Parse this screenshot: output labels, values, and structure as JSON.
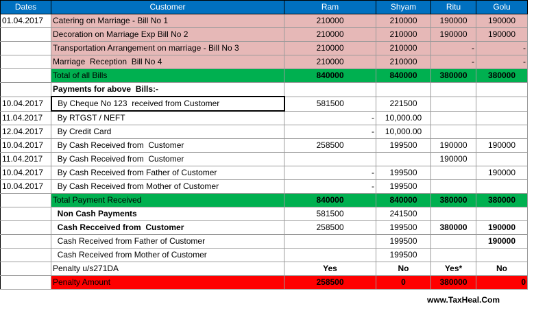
{
  "headers": [
    "Dates",
    "Customer",
    "Ram",
    "Shyam",
    "Ritu",
    "Golu"
  ],
  "rows": [
    {
      "style": "pink",
      "cells": [
        "01.04.2017",
        "Catering on Marriage - Bill No 1",
        "210000",
        "210000",
        "190000",
        "190000"
      ]
    },
    {
      "style": "pink",
      "cells": [
        "",
        "Decoration on Marriage Exp Bill No 2",
        "210000",
        "210000",
        "190000",
        "190000"
      ]
    },
    {
      "style": "pink",
      "cells": [
        "",
        "Transportation Arrangement on marriage - Bill No 3",
        "210000",
        "210000",
        "-",
        "-"
      ]
    },
    {
      "style": "pink",
      "cells": [
        "",
        "Marriage  Reception  Bill No 4",
        "210000",
        "210000",
        "-",
        "-"
      ]
    },
    {
      "style": "green",
      "cells": [
        "",
        "Total of all Bills",
        "840000",
        "840000",
        "380000",
        "380000"
      ]
    },
    {
      "style": "plain",
      "cells": [
        "",
        "Payments for above  Bills:-",
        "",
        "",
        "",
        ""
      ]
    },
    {
      "style": "plain",
      "cells": [
        "10.04.2017",
        "  By Cheque No 123  received from Customer",
        "581500",
        "221500",
        "",
        ""
      ]
    },
    {
      "style": "plain",
      "cells": [
        "11.04.2017",
        "  By RTGST / NEFT",
        "-",
        "10,000.00",
        "",
        ""
      ]
    },
    {
      "style": "plain",
      "cells": [
        "12.04.2017",
        "  By Credit Card",
        "-",
        "10,000.00",
        "",
        ""
      ]
    },
    {
      "style": "plain",
      "cells": [
        "10.04.2017",
        "  By Cash Received from  Customer",
        "258500",
        "199500",
        "190000",
        "190000"
      ]
    },
    {
      "style": "plain",
      "cells": [
        "11.04.2017",
        "  By Cash Received from  Customer",
        "",
        "",
        "190000",
        ""
      ]
    },
    {
      "style": "plain",
      "cells": [
        "10.04.2017",
        "  By Cash Received from Father of Customer",
        "-",
        "199500",
        "",
        "190000"
      ]
    },
    {
      "style": "plain",
      "cells": [
        "10.04.2017",
        "  By Cash Received from Mother of Customer",
        "-",
        "199500",
        "",
        ""
      ]
    },
    {
      "style": "green",
      "cells": [
        "",
        "Total Payment Received",
        "840000",
        "840000",
        "380000",
        "380000"
      ]
    },
    {
      "style": "plain",
      "cells": [
        "",
        "  Non Cash Payments",
        "581500",
        "241500",
        "",
        ""
      ]
    },
    {
      "style": "plain",
      "cells": [
        "",
        "  Cash Recceived from  Customer",
        "258500",
        "199500",
        "380000",
        "190000"
      ]
    },
    {
      "style": "plain",
      "cells": [
        "",
        "  Cash Received from Father of Customer",
        "",
        "199500",
        "",
        "190000"
      ]
    },
    {
      "style": "plain",
      "cells": [
        "",
        "  Cash Received from Mother of Customer",
        "",
        "199500",
        "",
        ""
      ]
    },
    {
      "style": "plain",
      "cells": [
        "",
        "Penalty u/s271DA",
        "Yes",
        "No",
        "Yes*",
        "No"
      ]
    },
    {
      "style": "red",
      "cells": [
        "",
        "Penalty Amount",
        "258500",
        "0",
        "380000",
        "0"
      ]
    }
  ],
  "footer": "www.TaxHeal.Com",
  "colors": {
    "header": "#0070c0",
    "pink": "#e6b8b7",
    "green": "#00b050",
    "red": "#ff0000"
  }
}
